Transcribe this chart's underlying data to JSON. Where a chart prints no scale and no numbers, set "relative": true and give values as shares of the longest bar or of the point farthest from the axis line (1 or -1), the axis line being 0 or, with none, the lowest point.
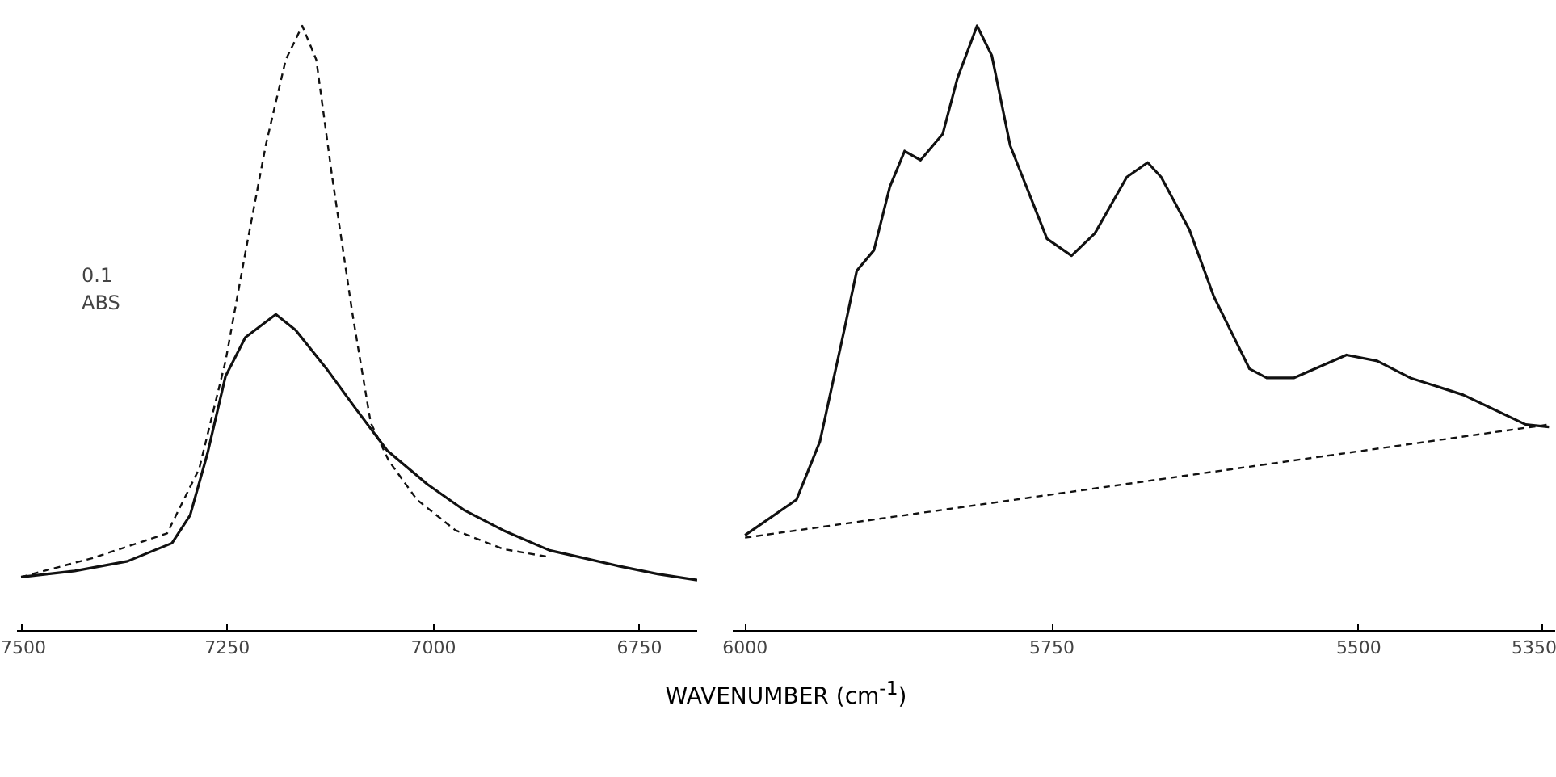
{
  "chart_data": [
    {
      "type": "line",
      "relative": true,
      "xlabel": "WAVENUMBER (cm$^{-1}$)",
      "annotations": [
        "0.1 ABS"
      ],
      "xlim": [
        7505,
        6680
      ],
      "xticks": [
        7500,
        7250,
        7000,
        6750
      ],
      "grid": false,
      "series": [
        {
          "color": "#111111",
          "line_style": "solid",
          "x": [
            7500,
            7435,
            7371,
            7317,
            7295,
            7274,
            7252,
            7228,
            7191,
            7167,
            7130,
            7093,
            7056,
            7007,
            6962,
            6915,
            6859,
            6823,
            6775,
            6728,
            6680
          ],
          "values": [
            0.089,
            0.099,
            0.115,
            0.145,
            0.191,
            0.293,
            0.421,
            0.485,
            0.523,
            0.497,
            0.434,
            0.365,
            0.298,
            0.242,
            0.199,
            0.166,
            0.133,
            0.122,
            0.107,
            0.094,
            0.084
          ]
        },
        {
          "color": "#111111",
          "line_style": "dashed",
          "x": [
            7500,
            7414,
            7323,
            7284,
            7252,
            7228,
            7203,
            7179,
            7159,
            7142,
            7123,
            7098,
            7076,
            7054,
            7020,
            6973,
            6915,
            6859
          ],
          "values": [
            0.089,
            0.12,
            0.161,
            0.268,
            0.446,
            0.625,
            0.804,
            0.944,
            1.0,
            0.944,
            0.753,
            0.523,
            0.344,
            0.281,
            0.217,
            0.166,
            0.135,
            0.122
          ]
        }
      ]
    },
    {
      "type": "line",
      "relative": true,
      "xlim": [
        6010,
        5340
      ],
      "xticks": [
        6000,
        5750,
        5500,
        5350
      ],
      "grid": false,
      "series": [
        {
          "color": "#111111",
          "line_style": "solid",
          "x": [
            6000,
            5958,
            5939,
            5919,
            5909,
            5895,
            5882,
            5870,
            5857,
            5839,
            5827,
            5811,
            5799,
            5784,
            5754,
            5734,
            5715,
            5689,
            5672,
            5661,
            5638,
            5618,
            5589,
            5575,
            5553,
            5510,
            5485,
            5458,
            5415,
            5364,
            5345
          ],
          "values": [
            0.158,
            0.217,
            0.313,
            0.499,
            0.595,
            0.629,
            0.734,
            0.793,
            0.778,
            0.821,
            0.913,
            1.0,
            0.951,
            0.802,
            0.648,
            0.62,
            0.657,
            0.75,
            0.774,
            0.75,
            0.663,
            0.552,
            0.433,
            0.418,
            0.418,
            0.456,
            0.446,
            0.418,
            0.39,
            0.341,
            0.337
          ]
        },
        {
          "color": "#111111",
          "line_style": "dashed",
          "x": [
            6000,
            5345
          ],
          "values": [
            0.154,
            0.341
          ]
        }
      ]
    }
  ]
}
